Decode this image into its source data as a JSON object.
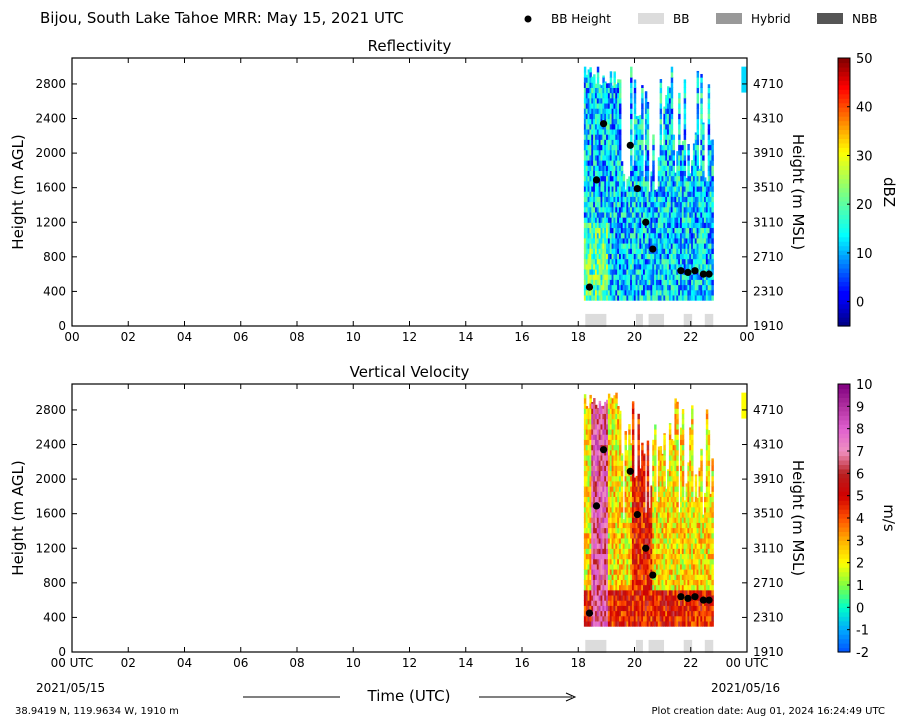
{
  "title": "Bijou, South Lake Tahoe MRR:  May 15, 2021 UTC",
  "legend": {
    "placement": "top-right",
    "items": [
      {
        "label": "BB Height",
        "kind": "dot",
        "color": "#000000"
      },
      {
        "label": "BB",
        "kind": "swatch",
        "color": "#dcdcdc"
      },
      {
        "label": "Hybrid",
        "kind": "swatch",
        "color": "#999999"
      },
      {
        "label": "NBB",
        "kind": "swatch",
        "color": "#555555"
      }
    ]
  },
  "footer": {
    "location": "38.9419 N, 119.9634 W, 1910 m",
    "created": "Plot creation date: Aug 01, 2024 16:24:49 UTC",
    "xlabel": "Time (UTC)",
    "start_date": "2021/05/15",
    "end_date": "2021/05/16"
  },
  "chart_data": [
    {
      "type": "heatmap",
      "title": "Reflectivity",
      "xlabel": "",
      "ylabel": "Height (m AGL)",
      "ylabel_right": "Height (m MSL)",
      "xlim": [
        0,
        24
      ],
      "ylim": [
        0,
        3100
      ],
      "x_ticks": [
        "00",
        "02",
        "04",
        "06",
        "08",
        "10",
        "12",
        "14",
        "16",
        "18",
        "20",
        "22",
        "00"
      ],
      "y_ticks": [
        0,
        400,
        800,
        1200,
        1600,
        2000,
        2400,
        2800
      ],
      "y_ticks_right": [
        1910,
        2310,
        2710,
        3110,
        3510,
        3910,
        4310,
        4710
      ],
      "colorbar": {
        "label": "dBZ",
        "min": -5,
        "max": 50,
        "ticks": [
          0,
          10,
          20,
          30,
          40,
          50
        ],
        "colormap": "jet"
      },
      "data_extent": {
        "x": [
          18.2,
          22.8
        ],
        "height": [
          300,
          3000
        ]
      },
      "typical_value": 12,
      "bb_height": {
        "x": [
          18.4,
          18.65,
          18.9,
          19.85,
          20.1,
          20.4,
          20.65,
          21.65,
          21.9,
          22.15,
          22.45,
          22.65
        ],
        "y": [
          450,
          1690,
          2340,
          2090,
          1590,
          1200,
          890,
          640,
          620,
          640,
          600,
          600
        ]
      },
      "bb_flags": [
        {
          "type": "BB",
          "start": 18.25,
          "end": 19.0
        },
        {
          "type": "BB",
          "start": 20.05,
          "end": 20.3
        },
        {
          "type": "BB",
          "start": 20.5,
          "end": 21.05
        },
        {
          "type": "BB",
          "start": 21.75,
          "end": 22.05
        },
        {
          "type": "BB",
          "start": 22.5,
          "end": 22.8
        }
      ]
    },
    {
      "type": "heatmap",
      "title": "Vertical Velocity",
      "xlabel": "Time (UTC)",
      "ylabel": "Height (m AGL)",
      "ylabel_right": "Height (m MSL)",
      "xlim": [
        0,
        24
      ],
      "ylim": [
        0,
        3100
      ],
      "x_ticks": [
        "00 UTC",
        "02",
        "04",
        "06",
        "08",
        "10",
        "12",
        "14",
        "16",
        "18",
        "20",
        "22",
        "00 UTC"
      ],
      "y_ticks": [
        0,
        400,
        800,
        1200,
        1600,
        2000,
        2400,
        2800
      ],
      "y_ticks_right": [
        1910,
        2310,
        2710,
        3110,
        3510,
        3910,
        4310,
        4710
      ],
      "colorbar": {
        "label": "m/s",
        "min": -2,
        "max": 10,
        "ticks": [
          -2,
          -1,
          0,
          1,
          2,
          3,
          4,
          5,
          6,
          7,
          8,
          9,
          10
        ],
        "colormap": "velocity"
      },
      "data_extent": {
        "x": [
          18.2,
          22.8
        ],
        "height": [
          300,
          3000
        ]
      },
      "typical_value": 2,
      "bb_height": {
        "x": [
          18.4,
          18.65,
          18.9,
          19.85,
          20.1,
          20.4,
          20.65,
          21.65,
          21.9,
          22.15,
          22.45,
          22.65
        ],
        "y": [
          450,
          1690,
          2340,
          2090,
          1590,
          1200,
          890,
          640,
          620,
          640,
          600,
          600
        ]
      },
      "bb_flags": [
        {
          "type": "BB",
          "start": 18.25,
          "end": 19.0
        },
        {
          "type": "BB",
          "start": 20.05,
          "end": 20.3
        },
        {
          "type": "BB",
          "start": 20.5,
          "end": 21.05
        },
        {
          "type": "BB",
          "start": 21.75,
          "end": 22.05
        },
        {
          "type": "BB",
          "start": 22.5,
          "end": 22.8
        }
      ]
    }
  ]
}
